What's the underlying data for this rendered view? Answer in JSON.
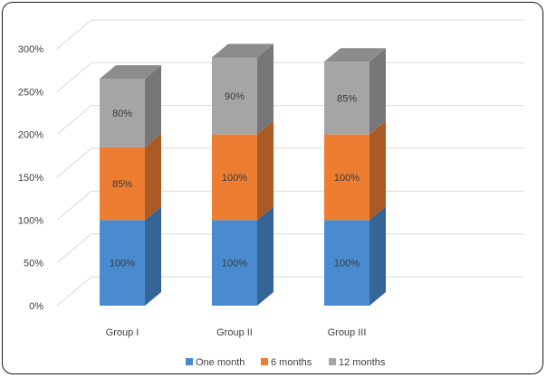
{
  "chart_data": {
    "type": "bar",
    "stacked": true,
    "style": "3d",
    "categories": [
      "Group I",
      "Group II",
      "Group III"
    ],
    "series": [
      {
        "name": "One month",
        "values": [
          100,
          100,
          100
        ],
        "labels": [
          "100%",
          "100%",
          "100%"
        ],
        "color": "#4a8bd0"
      },
      {
        "name": "6 months",
        "values": [
          85,
          100,
          100
        ],
        "labels": [
          "85%",
          "100%",
          "100%"
        ],
        "color": "#ed7d31"
      },
      {
        "name": "12 months",
        "values": [
          80,
          90,
          85
        ],
        "labels": [
          "80%",
          "90%",
          "85%"
        ],
        "color": "#a5a5a5"
      }
    ],
    "yticks": [
      "0%",
      "50%",
      "100%",
      "150%",
      "200%",
      "250%",
      "300%"
    ],
    "ylim": [
      0,
      300
    ],
    "grid": true,
    "legend": "bottom"
  }
}
